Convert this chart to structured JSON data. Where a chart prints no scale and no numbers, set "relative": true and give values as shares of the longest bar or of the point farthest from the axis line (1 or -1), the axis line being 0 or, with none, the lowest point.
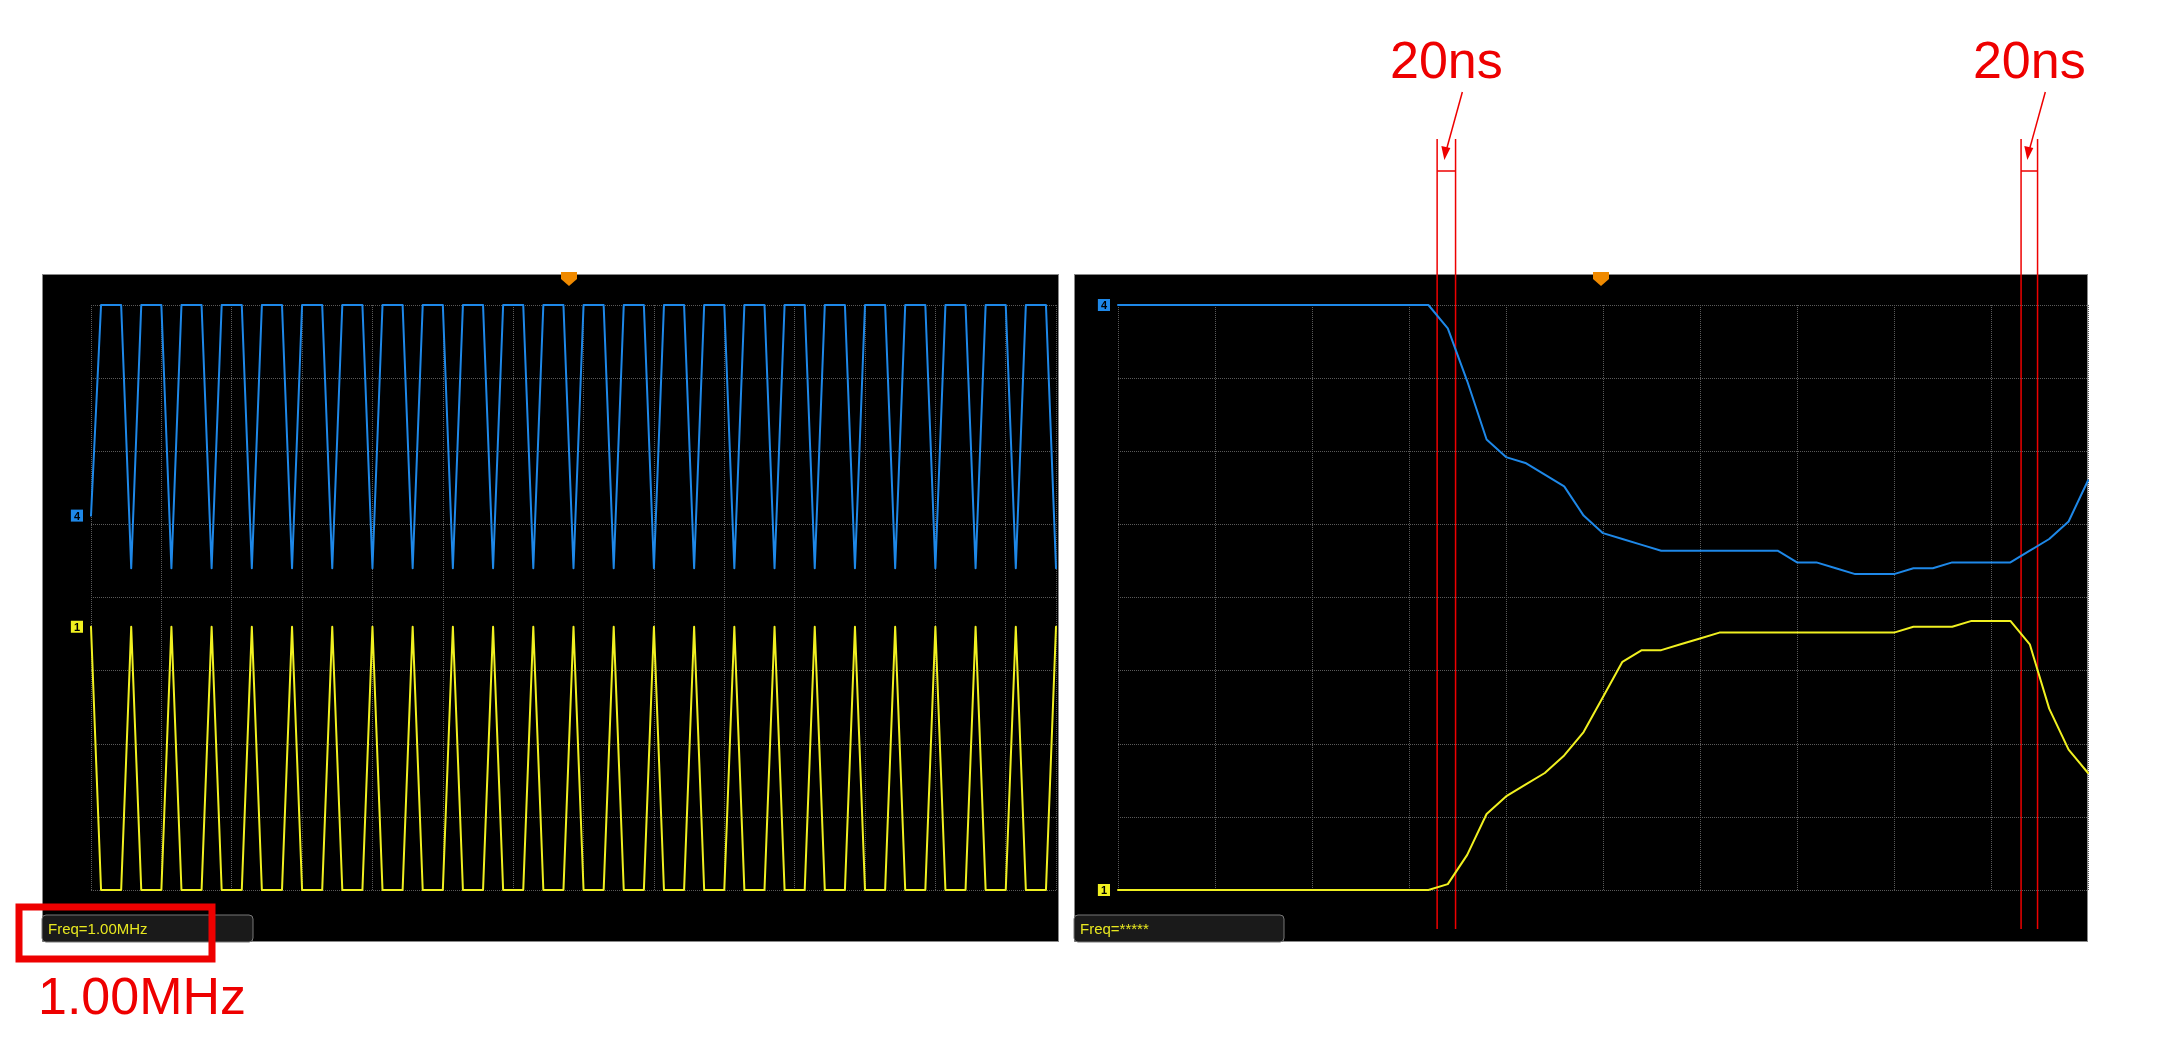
{
  "chart_data": [
    {
      "type": "line",
      "relative": true,
      "grid": true,
      "annotations": [
        "Freq=1.00MHz",
        "1.00MHz"
      ],
      "categories": [
        null,
        null,
        null,
        null,
        null,
        null,
        null,
        null,
        null,
        null,
        null,
        null,
        null,
        null,
        null,
        null,
        null,
        null,
        null,
        null,
        null,
        null,
        null,
        null,
        null,
        null,
        null,
        null,
        null,
        null,
        null,
        null,
        null,
        null,
        null,
        null,
        null,
        null,
        null,
        null,
        null,
        null,
        null,
        null,
        null,
        null,
        null,
        null,
        null,
        null,
        null,
        null,
        null,
        null,
        null,
        null,
        null,
        null,
        null,
        null,
        null,
        null,
        null,
        null,
        null,
        null,
        null,
        null,
        null,
        null,
        null,
        null,
        null,
        null,
        null,
        null,
        null,
        null,
        null,
        null,
        null,
        null,
        null,
        null,
        null,
        null,
        null,
        null,
        null,
        null,
        null,
        null,
        null,
        null,
        null,
        null,
        null
      ],
      "series": [
        {
          "name": "4",
          "color": "#1e88e8",
          "values": [
            0.64,
            1,
            1,
            1,
            0.55,
            1,
            1,
            1,
            0.55,
            1,
            1,
            1,
            0.55,
            1,
            1,
            1,
            0.55,
            1,
            1,
            1,
            0.55,
            1,
            1,
            1,
            0.55,
            1,
            1,
            1,
            0.55,
            1,
            1,
            1,
            0.55,
            1,
            1,
            1,
            0.55,
            1,
            1,
            1,
            0.55,
            1,
            1,
            1,
            0.55,
            1,
            1,
            1,
            0.55,
            1,
            1,
            1,
            0.55,
            1,
            1,
            1,
            0.55,
            1,
            1,
            1,
            0.55,
            1,
            1,
            1,
            0.55,
            1,
            1,
            1,
            0.55,
            1,
            1,
            1,
            0.55,
            1,
            1,
            1,
            0.55,
            1,
            1,
            1,
            0.55,
            1,
            1,
            1,
            0.55,
            1,
            1,
            1,
            0.55,
            1,
            1,
            1,
            0.55,
            1,
            1,
            1,
            0.55
          ]
        },
        {
          "name": "1",
          "color": "#f0f020",
          "values": [
            0.45,
            0,
            0,
            0,
            0.45,
            0,
            0,
            0,
            0.45,
            0,
            0,
            0,
            0.45,
            0,
            0,
            0,
            0.45,
            0,
            0,
            0,
            0.45,
            0,
            0,
            0,
            0.45,
            0,
            0,
            0,
            0.45,
            0,
            0,
            0,
            0.45,
            0,
            0,
            0,
            0.45,
            0,
            0,
            0,
            0.45,
            0,
            0,
            0,
            0.45,
            0,
            0,
            0,
            0.45,
            0,
            0,
            0,
            0.45,
            0,
            0,
            0,
            0.45,
            0,
            0,
            0,
            0.45,
            0,
            0,
            0,
            0.45,
            0,
            0,
            0,
            0.45,
            0,
            0,
            0,
            0.45,
            0,
            0,
            0,
            0.45,
            0,
            0,
            0,
            0.45,
            0,
            0,
            0,
            0.45,
            0,
            0,
            0,
            0.45,
            0,
            0,
            0,
            0.45,
            0,
            0,
            0,
            0.45
          ]
        }
      ]
    },
    {
      "type": "line",
      "relative": true,
      "grid": true,
      "annotations": [
        "Freq=*****",
        "20ns",
        "20ns"
      ],
      "categories": [
        null,
        null,
        null,
        null,
        null,
        null,
        null,
        null,
        null,
        null,
        null,
        null,
        null,
        null,
        null,
        null,
        null,
        null,
        null,
        null,
        null,
        null,
        null,
        null,
        null,
        null,
        null,
        null,
        null,
        null,
        null,
        null,
        null,
        null,
        null,
        null,
        null,
        null,
        null,
        null,
        null,
        null,
        null,
        null,
        null,
        null,
        null,
        null,
        null,
        null,
        null
      ],
      "series": [
        {
          "name": "4",
          "color": "#1e88e8",
          "values": [
            1,
            1,
            1,
            1,
            1,
            1,
            1,
            1,
            1,
            1,
            1,
            1,
            1,
            1,
            1,
            1,
            1,
            0.96,
            0.87,
            0.77,
            0.74,
            0.73,
            0.71,
            0.69,
            0.64,
            0.61,
            0.6,
            0.59,
            0.58,
            0.58,
            0.58,
            0.58,
            0.58,
            0.58,
            0.58,
            0.56,
            0.56,
            0.55,
            0.54,
            0.54,
            0.54,
            0.55,
            0.55,
            0.56,
            0.56,
            0.56,
            0.56,
            0.58,
            0.6,
            0.63,
            0.7
          ]
        },
        {
          "name": "1",
          "color": "#f0f020",
          "values": [
            0,
            0,
            0,
            0,
            0,
            0,
            0,
            0,
            0,
            0,
            0,
            0,
            0,
            0,
            0,
            0,
            0,
            0.01,
            0.06,
            0.13,
            0.16,
            0.18,
            0.2,
            0.23,
            0.27,
            0.33,
            0.39,
            0.41,
            0.41,
            0.42,
            0.43,
            0.44,
            0.44,
            0.44,
            0.44,
            0.44,
            0.44,
            0.44,
            0.44,
            0.44,
            0.44,
            0.45,
            0.45,
            0.45,
            0.46,
            0.46,
            0.46,
            0.42,
            0.31,
            0.24,
            0.2
          ]
        }
      ]
    }
  ]
}
